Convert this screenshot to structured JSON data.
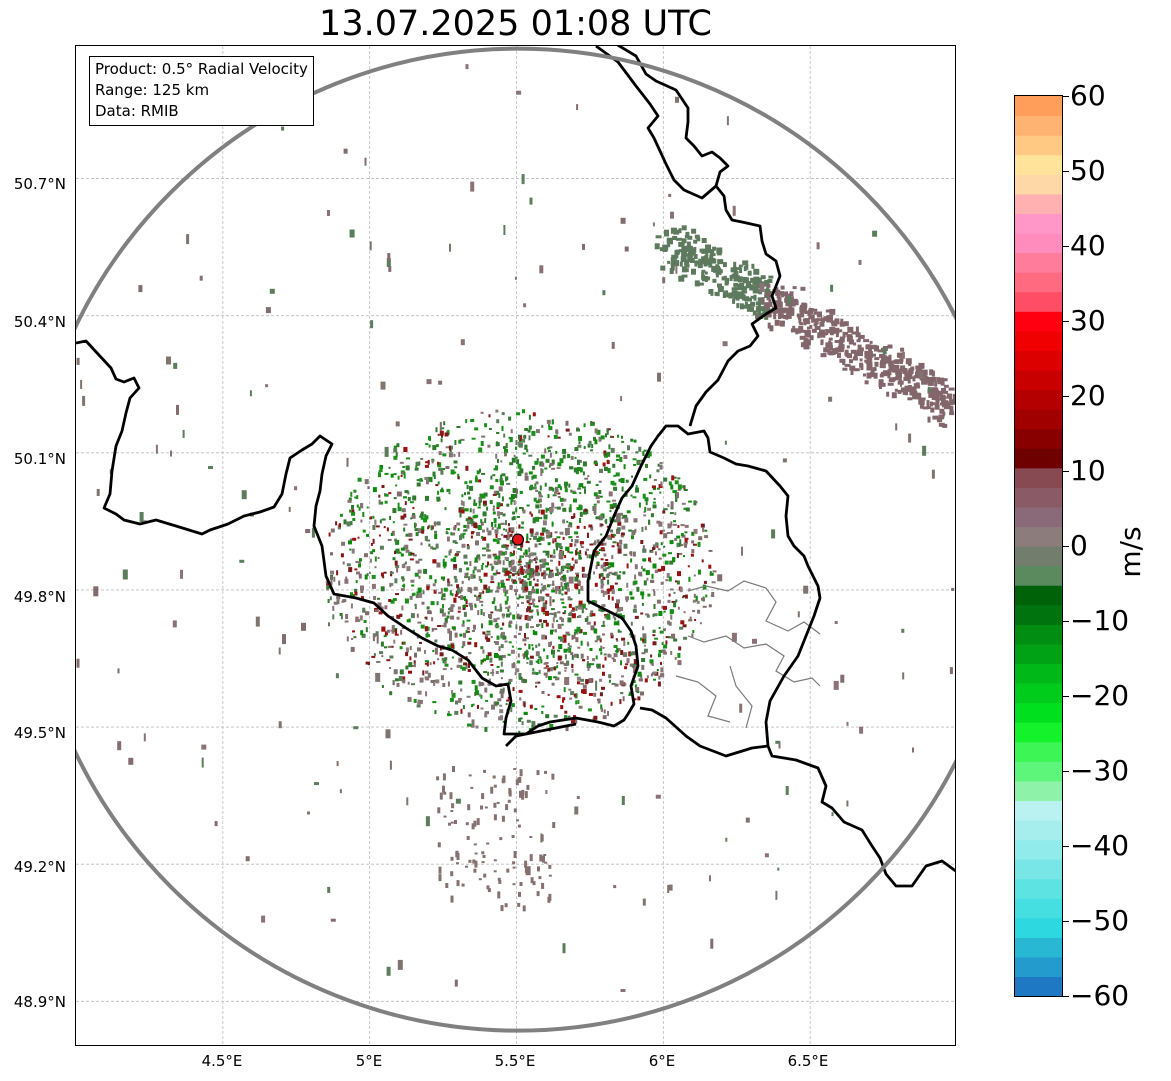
{
  "title": "13.07.2025 01:08 UTC",
  "info_box": {
    "product": "Product: 0.5° Radial Velocity",
    "range": "Range: 125 km",
    "data": "Data: RMIB"
  },
  "axes": {
    "lat_labels": [
      "50.7°N",
      "50.4°N",
      "50.1°N",
      "49.8°N",
      "49.5°N",
      "49.2°N",
      "48.9°N"
    ],
    "lon_labels": [
      "4.5°E",
      "5°E",
      "5.5°E",
      "6°E",
      "6.5°E"
    ],
    "lat_range": [
      48.8,
      50.99
    ],
    "lon_range": [
      4.0,
      7.0
    ],
    "grid": true
  },
  "radar_site": {
    "lat": 49.91,
    "lon": 5.505,
    "color": "#e0141b"
  },
  "range_ring_color": "#808080",
  "colorbar": {
    "label": "m/s",
    "ticks": [
      "60",
      "50",
      "40",
      "30",
      "20",
      "10",
      "0",
      "−10",
      "−20",
      "−30",
      "−40",
      "−50",
      "−60"
    ],
    "min": -60,
    "max": 60,
    "colors_bottom_to_top": [
      "#1f78c4",
      "#239bcc",
      "#28b8d4",
      "#2dd8e0",
      "#45dfe2",
      "#5ee3e3",
      "#78e6e6",
      "#92ebeb",
      "#a6eeee",
      "#b9f2f1",
      "#8ef2a9",
      "#5df57a",
      "#3ef556",
      "#13f22a",
      "#00e01e",
      "#00cc1b",
      "#00b818",
      "#00a215",
      "#008d12",
      "#00730e",
      "#006208",
      "#5a8a5e",
      "#727d6e",
      "#8c7c7c",
      "#8a6a78",
      "#8a5a66",
      "#884a52",
      "#6e0000",
      "#880000",
      "#a00000",
      "#b40000",
      "#c80000",
      "#dc0000",
      "#f00000",
      "#fe0010",
      "#ff4d66",
      "#ff6a80",
      "#ff7c9a",
      "#ff8cbc",
      "#ff98c8",
      "#ffb0b0",
      "#ffd8a8",
      "#ffe39a",
      "#ffc883",
      "#ffb372",
      "#ff9e5a"
    ]
  }
}
